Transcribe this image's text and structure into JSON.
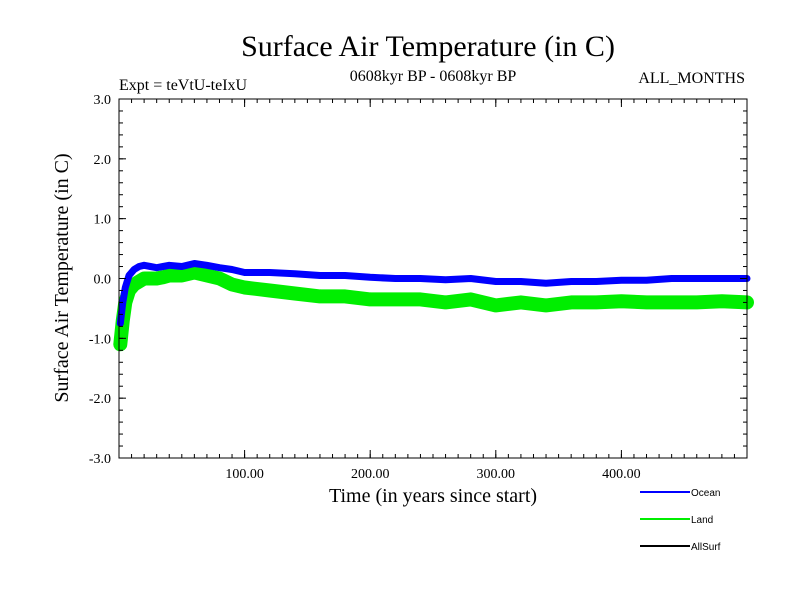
{
  "chart_data": {
    "type": "line",
    "title": "Surface Air Temperature (in C)",
    "subtitle_left": "Expt = teVtU-teIxU",
    "subtitle_center": "0608kyr BP - 0608kyr BP",
    "subtitle_right": "ALL_MONTHS",
    "xlabel": "Time (in years since start)",
    "ylabel": "Surface Air Temperature (in C)",
    "xlim": [
      0,
      500
    ],
    "ylim": [
      -3.0,
      3.0
    ],
    "x_ticks": [
      100,
      200,
      300,
      400
    ],
    "x_tick_labels": [
      "100.00",
      "200.00",
      "300.00",
      "400.00"
    ],
    "y_ticks": [
      -3,
      -2,
      -1,
      0,
      1,
      2,
      3
    ],
    "y_tick_labels": [
      "-3.0",
      "-2.0",
      "-1.0",
      "0.0",
      "1.0",
      "2.0",
      "3.0"
    ],
    "grid": false,
    "legend_position": "bottom-right",
    "series": [
      {
        "name": "Ocean",
        "color": "#0000ff",
        "x": [
          1,
          3,
          5,
          8,
          12,
          16,
          20,
          25,
          30,
          35,
          40,
          50,
          60,
          70,
          80,
          90,
          100,
          120,
          140,
          160,
          180,
          200,
          220,
          240,
          260,
          280,
          300,
          320,
          340,
          360,
          380,
          400,
          420,
          440,
          460,
          480,
          500
        ],
        "y": [
          -0.75,
          -0.4,
          -0.15,
          0.05,
          0.15,
          0.2,
          0.22,
          0.2,
          0.18,
          0.2,
          0.22,
          0.2,
          0.25,
          0.22,
          0.18,
          0.15,
          0.1,
          0.1,
          0.08,
          0.05,
          0.05,
          0.02,
          0.0,
          0.0,
          -0.02,
          0.0,
          -0.05,
          -0.05,
          -0.08,
          -0.05,
          -0.05,
          -0.03,
          -0.03,
          0.0,
          0.0,
          0.0,
          0.0
        ]
      },
      {
        "name": "Land",
        "color": "#00ee00",
        "x": [
          1,
          3,
          5,
          8,
          12,
          16,
          20,
          25,
          30,
          35,
          40,
          50,
          60,
          70,
          80,
          90,
          100,
          120,
          140,
          160,
          180,
          200,
          220,
          240,
          260,
          280,
          300,
          320,
          340,
          360,
          380,
          400,
          420,
          440,
          460,
          480,
          500
        ],
        "y": [
          -1.1,
          -0.7,
          -0.4,
          -0.2,
          -0.1,
          -0.05,
          0.0,
          0.0,
          0.0,
          0.02,
          0.05,
          0.05,
          0.1,
          0.05,
          0.0,
          -0.1,
          -0.15,
          -0.2,
          -0.25,
          -0.3,
          -0.3,
          -0.35,
          -0.35,
          -0.35,
          -0.4,
          -0.35,
          -0.45,
          -0.4,
          -0.45,
          -0.4,
          -0.4,
          -0.38,
          -0.4,
          -0.4,
          -0.4,
          -0.38,
          -0.4
        ]
      },
      {
        "name": "AllSurf",
        "color": "#000000",
        "x": [],
        "y": []
      }
    ]
  }
}
